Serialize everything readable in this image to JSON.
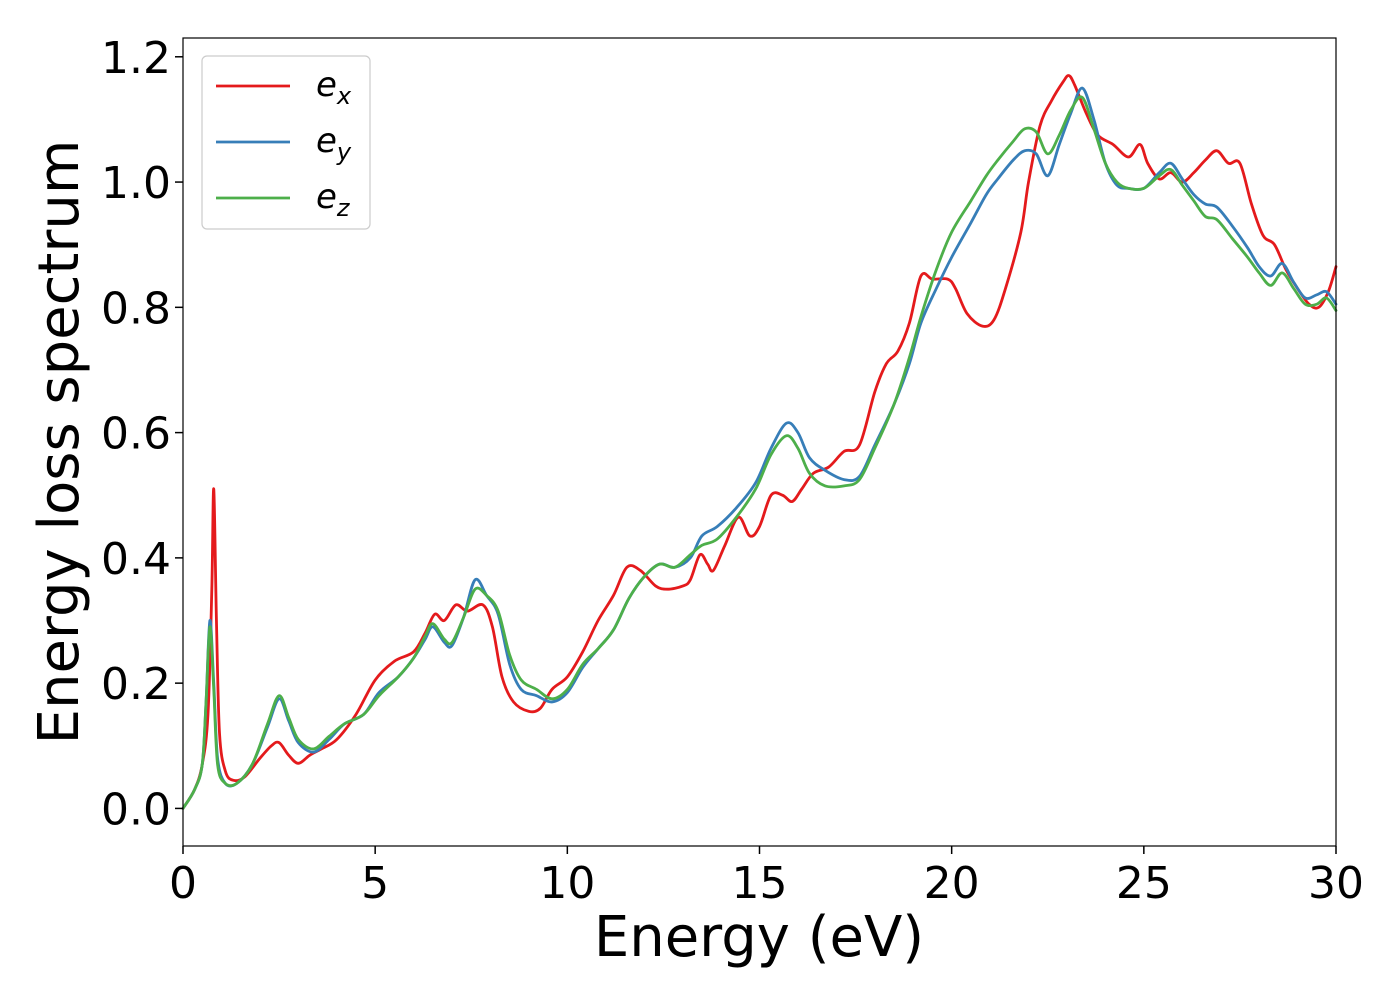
{
  "chart_data": {
    "type": "line",
    "xlabel": "Energy (eV)",
    "ylabel": "Energy loss spectrum",
    "xlim": [
      0,
      30
    ],
    "ylim": [
      -0.06,
      1.23
    ],
    "xticks": [
      0,
      5,
      10,
      15,
      20,
      25,
      30
    ],
    "yticks": [
      0.0,
      0.2,
      0.4,
      0.6,
      0.8,
      1.0,
      1.2
    ],
    "xtick_labels": [
      "0",
      "5",
      "10",
      "15",
      "20",
      "25",
      "30"
    ],
    "ytick_labels": [
      "0.0",
      "0.2",
      "0.4",
      "0.6",
      "0.8",
      "1.0",
      "1.2"
    ],
    "grid": false,
    "legend_position": "top-left",
    "series": [
      {
        "name": "e",
        "subscript": "x",
        "color": "#e41a1c",
        "points": [
          [
            0,
            0
          ],
          [
            0.3,
            0.03
          ],
          [
            0.5,
            0.07
          ],
          [
            0.65,
            0.15
          ],
          [
            0.75,
            0.35
          ],
          [
            0.8,
            0.51
          ],
          [
            0.87,
            0.3
          ],
          [
            0.95,
            0.12
          ],
          [
            1.1,
            0.06
          ],
          [
            1.3,
            0.045
          ],
          [
            1.6,
            0.05
          ],
          [
            2.0,
            0.08
          ],
          [
            2.3,
            0.1
          ],
          [
            2.5,
            0.105
          ],
          [
            2.75,
            0.085
          ],
          [
            3.0,
            0.072
          ],
          [
            3.3,
            0.085
          ],
          [
            3.6,
            0.095
          ],
          [
            4.0,
            0.11
          ],
          [
            4.5,
            0.15
          ],
          [
            5.0,
            0.205
          ],
          [
            5.5,
            0.235
          ],
          [
            6.0,
            0.25
          ],
          [
            6.3,
            0.28
          ],
          [
            6.55,
            0.31
          ],
          [
            6.8,
            0.3
          ],
          [
            7.1,
            0.325
          ],
          [
            7.4,
            0.315
          ],
          [
            7.8,
            0.325
          ],
          [
            8.05,
            0.29
          ],
          [
            8.3,
            0.21
          ],
          [
            8.6,
            0.17
          ],
          [
            9.0,
            0.155
          ],
          [
            9.3,
            0.16
          ],
          [
            9.6,
            0.19
          ],
          [
            10.0,
            0.21
          ],
          [
            10.4,
            0.25
          ],
          [
            10.8,
            0.3
          ],
          [
            11.2,
            0.34
          ],
          [
            11.55,
            0.385
          ],
          [
            11.9,
            0.38
          ],
          [
            12.3,
            0.355
          ],
          [
            12.6,
            0.35
          ],
          [
            13.0,
            0.355
          ],
          [
            13.2,
            0.365
          ],
          [
            13.45,
            0.405
          ],
          [
            13.65,
            0.39
          ],
          [
            13.8,
            0.38
          ],
          [
            14.1,
            0.42
          ],
          [
            14.45,
            0.465
          ],
          [
            14.75,
            0.435
          ],
          [
            15.0,
            0.45
          ],
          [
            15.3,
            0.5
          ],
          [
            15.6,
            0.5
          ],
          [
            15.85,
            0.49
          ],
          [
            16.1,
            0.51
          ],
          [
            16.4,
            0.535
          ],
          [
            16.8,
            0.545
          ],
          [
            17.2,
            0.57
          ],
          [
            17.6,
            0.58
          ],
          [
            18.0,
            0.665
          ],
          [
            18.3,
            0.71
          ],
          [
            18.6,
            0.73
          ],
          [
            18.9,
            0.775
          ],
          [
            19.2,
            0.85
          ],
          [
            19.5,
            0.845
          ],
          [
            19.9,
            0.845
          ],
          [
            20.1,
            0.83
          ],
          [
            20.4,
            0.79
          ],
          [
            20.8,
            0.77
          ],
          [
            21.1,
            0.78
          ],
          [
            21.4,
            0.83
          ],
          [
            21.8,
            0.92
          ],
          [
            22.0,
            1.0
          ],
          [
            22.3,
            1.09
          ],
          [
            22.6,
            1.13
          ],
          [
            22.9,
            1.16
          ],
          [
            23.05,
            1.17
          ],
          [
            23.2,
            1.155
          ],
          [
            23.5,
            1.11
          ],
          [
            23.8,
            1.075
          ],
          [
            24.2,
            1.06
          ],
          [
            24.6,
            1.04
          ],
          [
            24.9,
            1.06
          ],
          [
            25.1,
            1.03
          ],
          [
            25.4,
            1.005
          ],
          [
            25.7,
            1.015
          ],
          [
            26.0,
            1.0
          ],
          [
            26.3,
            1.015
          ],
          [
            26.6,
            1.035
          ],
          [
            26.9,
            1.05
          ],
          [
            27.2,
            1.03
          ],
          [
            27.5,
            1.03
          ],
          [
            27.8,
            0.965
          ],
          [
            28.1,
            0.915
          ],
          [
            28.4,
            0.9
          ],
          [
            28.7,
            0.86
          ],
          [
            29.0,
            0.83
          ],
          [
            29.3,
            0.805
          ],
          [
            29.55,
            0.8
          ],
          [
            29.8,
            0.825
          ],
          [
            30.0,
            0.865
          ]
        ]
      },
      {
        "name": "e",
        "subscript": "y",
        "color": "#377eb8",
        "points": [
          [
            0,
            0
          ],
          [
            0.3,
            0.03
          ],
          [
            0.5,
            0.07
          ],
          [
            0.6,
            0.17
          ],
          [
            0.7,
            0.3
          ],
          [
            0.8,
            0.2
          ],
          [
            0.9,
            0.08
          ],
          [
            1.1,
            0.04
          ],
          [
            1.4,
            0.04
          ],
          [
            1.8,
            0.07
          ],
          [
            2.2,
            0.13
          ],
          [
            2.5,
            0.175
          ],
          [
            2.75,
            0.14
          ],
          [
            3.0,
            0.105
          ],
          [
            3.4,
            0.09
          ],
          [
            3.8,
            0.11
          ],
          [
            4.2,
            0.135
          ],
          [
            4.7,
            0.15
          ],
          [
            5.1,
            0.185
          ],
          [
            5.6,
            0.21
          ],
          [
            6.0,
            0.24
          ],
          [
            6.3,
            0.27
          ],
          [
            6.5,
            0.29
          ],
          [
            6.8,
            0.265
          ],
          [
            7.0,
            0.26
          ],
          [
            7.3,
            0.305
          ],
          [
            7.6,
            0.365
          ],
          [
            7.9,
            0.34
          ],
          [
            8.2,
            0.31
          ],
          [
            8.5,
            0.23
          ],
          [
            8.8,
            0.19
          ],
          [
            9.2,
            0.18
          ],
          [
            9.6,
            0.17
          ],
          [
            10.0,
            0.185
          ],
          [
            10.4,
            0.225
          ],
          [
            10.8,
            0.255
          ],
          [
            11.2,
            0.285
          ],
          [
            11.6,
            0.335
          ],
          [
            12.0,
            0.37
          ],
          [
            12.4,
            0.39
          ],
          [
            12.8,
            0.385
          ],
          [
            13.2,
            0.4
          ],
          [
            13.5,
            0.435
          ],
          [
            13.9,
            0.45
          ],
          [
            14.4,
            0.48
          ],
          [
            14.9,
            0.52
          ],
          [
            15.3,
            0.575
          ],
          [
            15.7,
            0.615
          ],
          [
            16.0,
            0.6
          ],
          [
            16.3,
            0.56
          ],
          [
            16.7,
            0.54
          ],
          [
            17.2,
            0.525
          ],
          [
            17.6,
            0.53
          ],
          [
            18.0,
            0.58
          ],
          [
            18.5,
            0.645
          ],
          [
            18.9,
            0.71
          ],
          [
            19.2,
            0.775
          ],
          [
            19.6,
            0.83
          ],
          [
            20.0,
            0.88
          ],
          [
            20.5,
            0.935
          ],
          [
            20.9,
            0.98
          ],
          [
            21.2,
            1.005
          ],
          [
            21.6,
            1.035
          ],
          [
            21.9,
            1.05
          ],
          [
            22.2,
            1.045
          ],
          [
            22.5,
            1.01
          ],
          [
            22.8,
            1.06
          ],
          [
            23.1,
            1.11
          ],
          [
            23.4,
            1.15
          ],
          [
            23.7,
            1.1
          ],
          [
            24.0,
            1.03
          ],
          [
            24.3,
            0.995
          ],
          [
            24.6,
            0.99
          ],
          [
            25.0,
            0.99
          ],
          [
            25.4,
            1.015
          ],
          [
            25.7,
            1.03
          ],
          [
            26.0,
            1.005
          ],
          [
            26.3,
            0.98
          ],
          [
            26.6,
            0.965
          ],
          [
            26.9,
            0.96
          ],
          [
            27.3,
            0.93
          ],
          [
            27.7,
            0.895
          ],
          [
            28.0,
            0.865
          ],
          [
            28.3,
            0.85
          ],
          [
            28.6,
            0.87
          ],
          [
            28.9,
            0.84
          ],
          [
            29.2,
            0.815
          ],
          [
            29.5,
            0.82
          ],
          [
            29.75,
            0.825
          ],
          [
            30.0,
            0.805
          ]
        ]
      },
      {
        "name": "e",
        "subscript": "z",
        "color": "#4daf4a",
        "points": [
          [
            0,
            0
          ],
          [
            0.3,
            0.03
          ],
          [
            0.5,
            0.07
          ],
          [
            0.6,
            0.17
          ],
          [
            0.7,
            0.29
          ],
          [
            0.8,
            0.19
          ],
          [
            0.9,
            0.07
          ],
          [
            1.1,
            0.04
          ],
          [
            1.4,
            0.04
          ],
          [
            1.8,
            0.07
          ],
          [
            2.2,
            0.135
          ],
          [
            2.5,
            0.18
          ],
          [
            2.75,
            0.145
          ],
          [
            3.0,
            0.11
          ],
          [
            3.4,
            0.095
          ],
          [
            3.8,
            0.115
          ],
          [
            4.2,
            0.135
          ],
          [
            4.7,
            0.15
          ],
          [
            5.1,
            0.18
          ],
          [
            5.6,
            0.21
          ],
          [
            6.0,
            0.24
          ],
          [
            6.3,
            0.275
          ],
          [
            6.5,
            0.295
          ],
          [
            6.8,
            0.27
          ],
          [
            7.0,
            0.265
          ],
          [
            7.3,
            0.305
          ],
          [
            7.6,
            0.35
          ],
          [
            7.9,
            0.34
          ],
          [
            8.2,
            0.315
          ],
          [
            8.5,
            0.245
          ],
          [
            8.8,
            0.205
          ],
          [
            9.2,
            0.19
          ],
          [
            9.6,
            0.175
          ],
          [
            10.0,
            0.19
          ],
          [
            10.4,
            0.23
          ],
          [
            10.8,
            0.255
          ],
          [
            11.2,
            0.285
          ],
          [
            11.6,
            0.335
          ],
          [
            12.0,
            0.37
          ],
          [
            12.4,
            0.39
          ],
          [
            12.8,
            0.385
          ],
          [
            13.2,
            0.405
          ],
          [
            13.5,
            0.42
          ],
          [
            13.9,
            0.43
          ],
          [
            14.4,
            0.465
          ],
          [
            14.9,
            0.51
          ],
          [
            15.3,
            0.565
          ],
          [
            15.7,
            0.595
          ],
          [
            16.0,
            0.575
          ],
          [
            16.3,
            0.535
          ],
          [
            16.7,
            0.515
          ],
          [
            17.2,
            0.515
          ],
          [
            17.6,
            0.525
          ],
          [
            18.0,
            0.575
          ],
          [
            18.5,
            0.645
          ],
          [
            18.9,
            0.72
          ],
          [
            19.2,
            0.785
          ],
          [
            19.6,
            0.86
          ],
          [
            20.0,
            0.92
          ],
          [
            20.5,
            0.97
          ],
          [
            20.9,
            1.01
          ],
          [
            21.2,
            1.035
          ],
          [
            21.6,
            1.065
          ],
          [
            21.9,
            1.085
          ],
          [
            22.2,
            1.08
          ],
          [
            22.5,
            1.045
          ],
          [
            22.8,
            1.075
          ],
          [
            23.1,
            1.115
          ],
          [
            23.4,
            1.135
          ],
          [
            23.7,
            1.085
          ],
          [
            24.0,
            1.03
          ],
          [
            24.3,
            1.0
          ],
          [
            24.6,
            0.99
          ],
          [
            25.0,
            0.99
          ],
          [
            25.4,
            1.01
          ],
          [
            25.7,
            1.02
          ],
          [
            26.0,
            0.995
          ],
          [
            26.3,
            0.97
          ],
          [
            26.6,
            0.945
          ],
          [
            26.9,
            0.94
          ],
          [
            27.3,
            0.91
          ],
          [
            27.7,
            0.88
          ],
          [
            28.0,
            0.855
          ],
          [
            28.3,
            0.835
          ],
          [
            28.6,
            0.855
          ],
          [
            28.9,
            0.83
          ],
          [
            29.2,
            0.805
          ],
          [
            29.5,
            0.805
          ],
          [
            29.75,
            0.815
          ],
          [
            30.0,
            0.795
          ]
        ]
      }
    ]
  }
}
